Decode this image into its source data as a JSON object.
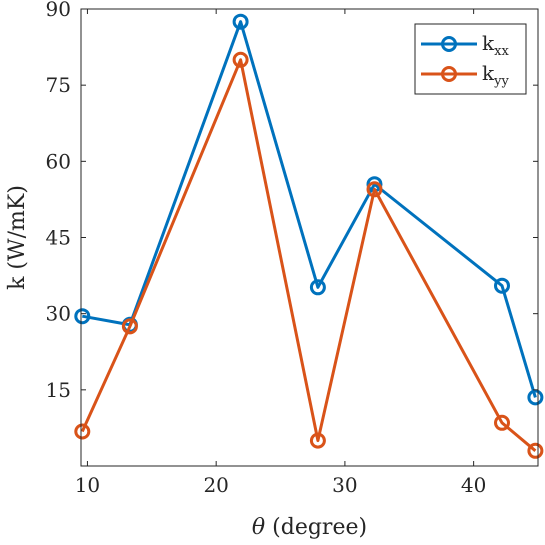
{
  "chart_data": {
    "type": "line",
    "xlabel_symbol": "θ",
    "xlabel_text": " (degree)",
    "ylabel": "k (W/mK)",
    "xlim": [
      9.5,
      45
    ],
    "ylim": [
      0,
      90
    ],
    "xticks": [
      10,
      20,
      30,
      40
    ],
    "yticks": [
      15,
      30,
      45,
      60,
      75,
      90
    ],
    "grid": false,
    "legend_position": "top-right",
    "x": [
      9.6,
      13.3,
      21.9,
      27.9,
      32.3,
      42.2,
      44.8
    ],
    "series": [
      {
        "name_base": "k",
        "name_sub": "xx",
        "color": "#0072BD",
        "values": [
          29.5,
          27.8,
          87.5,
          35.2,
          55.5,
          35.5,
          13.5
        ]
      },
      {
        "name_base": "k",
        "name_sub": "yy",
        "color": "#D95319",
        "values": [
          6.8,
          27.5,
          80.0,
          5.0,
          54.5,
          8.5,
          3.0
        ]
      }
    ]
  }
}
